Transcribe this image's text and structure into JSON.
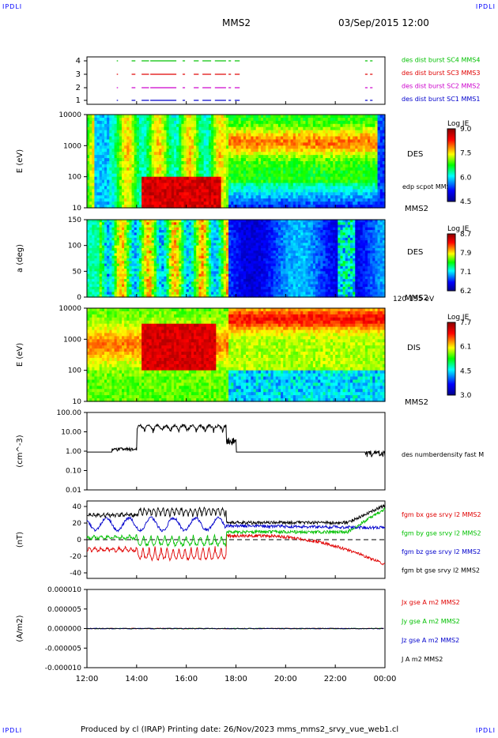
{
  "corners": {
    "tl": "IPDLI",
    "tr": "IPDLI",
    "bl": "IPDLI",
    "br": "IPDLI"
  },
  "header": {
    "title": "MMS2",
    "datetime": "03/Sep/2015 12:00"
  },
  "footer": {
    "produced": "Produced by cl (IRAP)   Printing date: 26/Nov/2023   mms_mms2_srvy_vue_web1.cl"
  },
  "colors": {
    "red": "#e00000",
    "green": "#00c000",
    "blue": "#0000cc",
    "magenta": "#cc00cc",
    "black": "#000000"
  },
  "chart_data": [
    {
      "type": "scatter",
      "id": "burst",
      "yticks": [
        "1",
        "2",
        "3",
        "4"
      ],
      "legend": [
        {
          "label": "des dist burst SC1 MMS1",
          "color": "#0000cc"
        },
        {
          "label": "des dist burst SC2 MMS2",
          "color": "#cc00cc"
        },
        {
          "label": "des dist burst SC3 MMS3",
          "color": "#e00000"
        },
        {
          "label": "des dist burst SC4 MMS4",
          "color": "#00c000"
        }
      ],
      "segments_hours": [
        [
          13.2,
          13.25
        ],
        [
          13.8,
          13.95
        ],
        [
          14.2,
          14.5
        ],
        [
          14.55,
          15.6
        ],
        [
          15.85,
          15.95
        ],
        [
          16.3,
          16.5
        ],
        [
          16.65,
          17.0
        ],
        [
          17.15,
          17.6
        ],
        [
          17.7,
          17.8
        ],
        [
          17.95,
          18.15
        ],
        [
          23.2,
          23.3
        ],
        [
          23.4,
          23.5
        ]
      ]
    },
    {
      "type": "heatmap",
      "id": "des-energy",
      "ylabel": "E (eV)",
      "yticks": [
        "10",
        "100",
        "1000",
        "10000"
      ],
      "right_label": "DES",
      "right_label2": "MMS2",
      "overlay_label": "edp scpot MMS2",
      "colorbar": {
        "title": "Log JE",
        "ticks": [
          "9.0",
          "7.5",
          "6.0",
          "4.5"
        ]
      }
    },
    {
      "type": "heatmap",
      "id": "des-pitch",
      "ylabel": "a (deg)",
      "yticks": [
        "0",
        "50",
        "100",
        "150"
      ],
      "right_label": "DES",
      "right_label2": "MMS2",
      "sub_label": "120-155 eV",
      "colorbar": {
        "title": "Log JE",
        "ticks": [
          "8.7",
          "7.9",
          "7.1",
          "6.2"
        ]
      }
    },
    {
      "type": "heatmap",
      "id": "dis-energy",
      "ylabel": "E (eV)",
      "yticks": [
        "10",
        "100",
        "1000",
        "10000"
      ],
      "right_label": "DIS",
      "right_label2": "MMS2",
      "colorbar": {
        "title": "Log JE",
        "ticks": [
          "7.7",
          "6.1",
          "4.5",
          "3.0"
        ]
      }
    },
    {
      "type": "line",
      "id": "density",
      "ylabel": "(cm^-3)",
      "yticks": [
        "0.01",
        "0.10",
        "1.00",
        "10.00",
        "100.00"
      ],
      "ylim": [
        0.01,
        100
      ],
      "log": true,
      "legend": [
        {
          "label": "des numberdensity fast M",
          "color": "#000000"
        }
      ]
    },
    {
      "type": "line",
      "id": "magnetic",
      "ylabel": "(nT)",
      "yticks": [
        "-40",
        "-20",
        "0",
        "20",
        "40"
      ],
      "ylim": [
        -50,
        50
      ],
      "legend": [
        {
          "label": "fgm bx gse srvy l2 MMS2",
          "color": "#e00000"
        },
        {
          "label": "fgm by gse srvy l2 MMS2",
          "color": "#00c000"
        },
        {
          "label": "fgm bz gse srvy l2 MMS2",
          "color": "#0000cc"
        },
        {
          "label": "fgm bt gse srvy l2 MMS2",
          "color": "#000000"
        }
      ]
    },
    {
      "type": "line",
      "id": "current",
      "ylabel": "(A/m2)",
      "yticks": [
        "-0.000010",
        "-0.000005",
        "0.000000",
        "0.000005",
        "0.000010"
      ],
      "ylim": [
        -1e-05,
        1e-05
      ],
      "legend": [
        {
          "label": "Jx gse A m2 MMS2",
          "color": "#e00000"
        },
        {
          "label": "Jy gse A m2 MMS2",
          "color": "#00c000"
        },
        {
          "label": "Jz gse A m2 MMS2",
          "color": "#0000cc"
        },
        {
          "label": "J A m2 MMS2",
          "color": "#000000"
        }
      ]
    }
  ],
  "xaxis": {
    "ticks": [
      "12:00",
      "14:00",
      "16:00",
      "18:00",
      "20:00",
      "22:00",
      "00:00"
    ],
    "range_hours": [
      12,
      24
    ]
  }
}
